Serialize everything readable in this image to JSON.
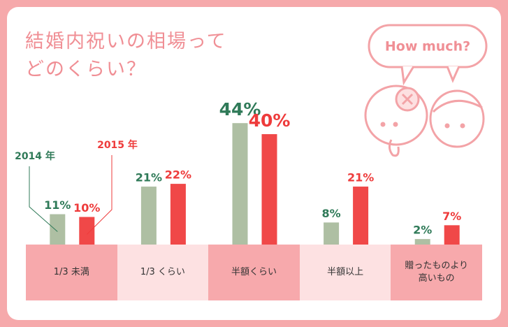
{
  "chart_data": {
    "type": "bar",
    "title": "結婚内祝いの相場って\nどのくらい？",
    "annotation": "How much?",
    "categories": [
      "1/3 未満",
      "1/3 くらい",
      "半額くらい",
      "半額以上",
      "贈ったものより\n高いもの"
    ],
    "series": [
      {
        "name": "2014 年",
        "color": "#aebfa3",
        "label_color": "#2f7a58",
        "values": [
          11,
          21,
          44,
          8,
          2
        ],
        "value_labels": [
          "11%",
          "21%",
          "44%",
          "8%",
          "2%"
        ]
      },
      {
        "name": "2015 年",
        "color": "#f04848",
        "label_color": "#ee3b3b",
        "values": [
          10,
          22,
          40,
          21,
          7
        ],
        "value_labels": [
          "10%",
          "22%",
          "40%",
          "21%",
          "7%"
        ]
      }
    ],
    "ylim": [
      0,
      50
    ]
  }
}
